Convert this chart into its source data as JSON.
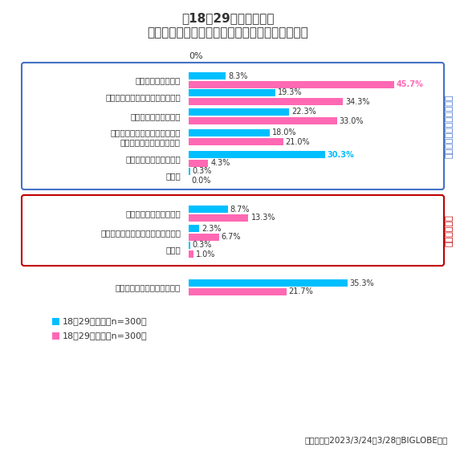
{
  "title_line1": "【18～29歳・男女別】",
  "title_line2": "マスクで素顔が隠れることについて（複数回答）",
  "zero_label": "0%",
  "positive_label": "マスク着用に肯定的な回答",
  "negative_label": "否定的な回答",
  "categories_positive": [
    "化粧不要で楽だった",
    "コンプレックスを隠せてよかった",
    "感情を隠せて楽だった",
    "素顔よりかわいく・きれいに・\nかっこよく見えてよかった",
    "ひげ剃り不要で楽だった",
    "その他"
  ],
  "categories_negative": [
    "感情が伝わりにくかった",
    "もっと自分の素顔を見てほしかった",
    "その他"
  ],
  "category_none": "上記にあてはまるものはない",
  "male_positive": [
    8.3,
    19.3,
    22.3,
    18.0,
    30.3,
    0.3
  ],
  "female_positive": [
    45.7,
    34.3,
    33.0,
    21.0,
    4.3,
    0.0
  ],
  "male_negative": [
    8.7,
    2.3,
    0.3
  ],
  "female_negative": [
    13.3,
    6.7,
    1.0
  ],
  "male_none": 35.3,
  "female_none": 21.7,
  "color_male": "#00BFFF",
  "color_female": "#FF69B4",
  "color_positive_box": "#4472C4",
  "color_negative_box": "#C00000",
  "color_positive_text": "#4472C4",
  "color_negative_text": "#C00000",
  "legend_male": "18～29歳男性（n=300）",
  "legend_female": "18～29歳女性（n=300）",
  "footnote": "調査期間：2023/3/24～3/28　BIGLOBE調べ",
  "bar_height": 0.32,
  "highlight_30_3": true
}
